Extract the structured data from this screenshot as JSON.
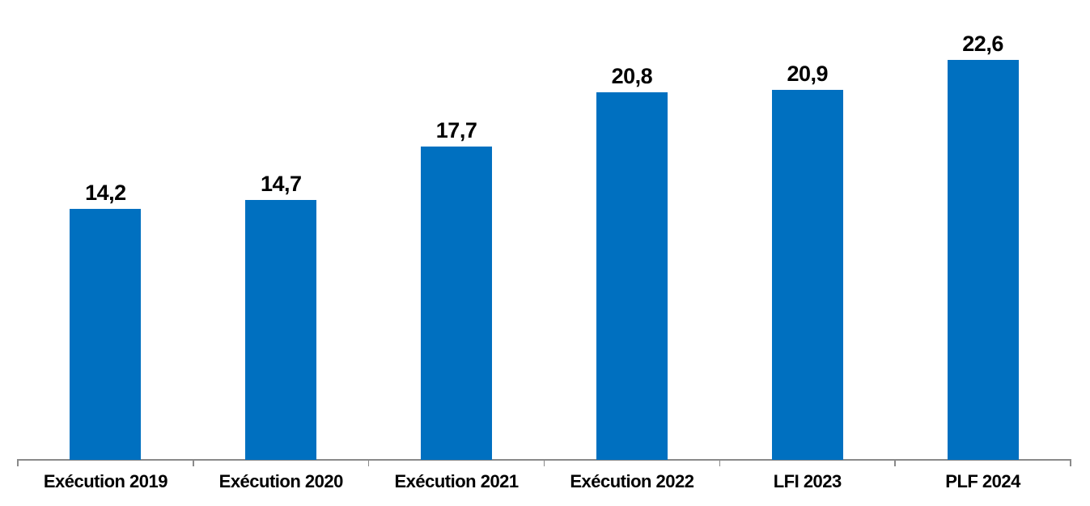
{
  "page": {
    "background_color": "#ffffff"
  },
  "chart_data": {
    "type": "bar",
    "title": "",
    "xlabel": "",
    "ylabel": "",
    "categories": [
      "Exécution 2019",
      "Exécution 2020",
      "Exécution 2021",
      "Exécution 2022",
      "LFI 2023",
      "PLF 2024"
    ],
    "values": [
      14.2,
      14.7,
      17.7,
      20.8,
      20.9,
      22.6
    ],
    "value_labels": [
      "14,2",
      "14,7",
      "17,7",
      "20,8",
      "20,9",
      "22,6"
    ],
    "ylim": [
      0,
      26
    ],
    "grid": false,
    "legend": false,
    "y_axis_visible": false,
    "x_axis_visible": true,
    "bar_color": "#0070C0",
    "axis_color": "#8a8a8a",
    "label_color": "#000000"
  }
}
